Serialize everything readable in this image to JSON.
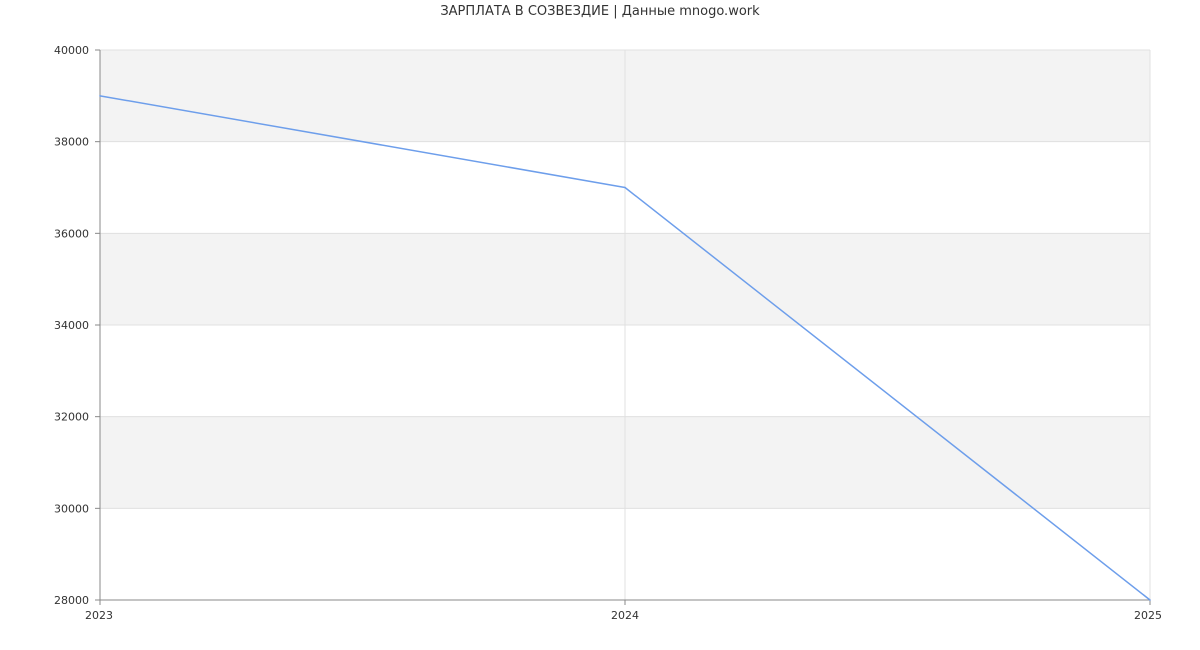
{
  "chart_data": {
    "type": "line",
    "title": "ЗАРПЛАТА В СОЗВЕЗДИЕ | Данные mnogo.work",
    "xlabel": "",
    "ylabel": "",
    "categories": [
      "2023",
      "2024",
      "2025"
    ],
    "y_ticks": [
      "28000",
      "30000",
      "32000",
      "34000",
      "36000",
      "38000",
      "40000"
    ],
    "ylim": [
      28000,
      40000
    ],
    "series": [
      {
        "values": [
          39000,
          37000,
          28000
        ],
        "color": "#6d9eeb"
      }
    ],
    "grid": true,
    "legend": "none",
    "band_color": "#f3f3f3",
    "grid_color": "#e0e0e0",
    "axis_color": "#888888"
  }
}
